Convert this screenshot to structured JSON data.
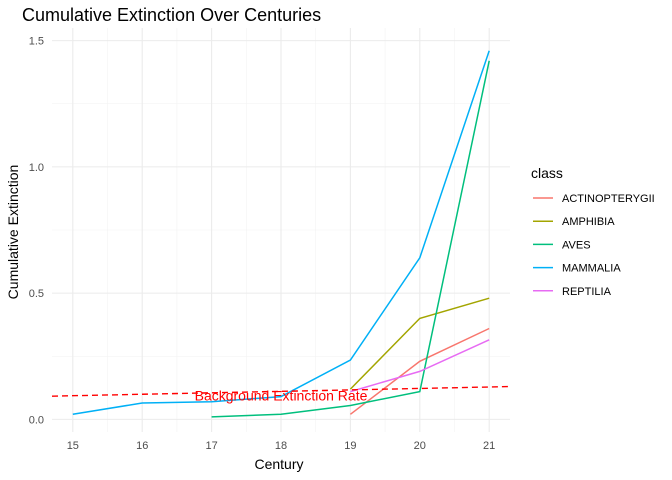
{
  "chart_data": {
    "type": "line",
    "title": "Cumulative Extinction Over Centuries",
    "xlabel": "Century",
    "ylabel": "Cumulative Extinction",
    "x_ticks": [
      15,
      16,
      17,
      18,
      19,
      20,
      21
    ],
    "y_ticks": [
      0.0,
      0.5,
      1.0,
      1.5
    ],
    "y_tick_labels": [
      "0.0",
      "0.5",
      "1.0",
      "1.5"
    ],
    "xlim": [
      14.7,
      21.3
    ],
    "ylim": [
      -0.05,
      1.55
    ],
    "grid": true,
    "legend": {
      "title": "class",
      "position": "right"
    },
    "series": [
      {
        "name": "ACTINOPTERYGII",
        "color": "#F8766D",
        "x": [
          19,
          20,
          21
        ],
        "y": [
          0.02,
          0.23,
          0.36
        ]
      },
      {
        "name": "AMPHIBIA",
        "color": "#A3A500",
        "x": [
          19,
          20,
          21
        ],
        "y": [
          0.12,
          0.4,
          0.48
        ]
      },
      {
        "name": "AVES",
        "color": "#00BF7D",
        "x": [
          17,
          18,
          19,
          20,
          21
        ],
        "y": [
          0.01,
          0.02,
          0.055,
          0.11,
          1.42
        ]
      },
      {
        "name": "MAMMALIA",
        "color": "#00B0F6",
        "x": [
          15,
          16,
          17,
          18,
          19,
          20,
          21
        ],
        "y": [
          0.02,
          0.065,
          0.07,
          0.09,
          0.235,
          0.64,
          1.46
        ]
      },
      {
        "name": "REPTILIA",
        "color": "#E76BF3",
        "x": [
          19,
          20,
          21
        ],
        "y": [
          0.11,
          0.19,
          0.315
        ]
      }
    ],
    "reference_line": {
      "label": "Background Extinction Rate",
      "color": "#FF0000",
      "style": "dashed",
      "x": [
        14.7,
        21.3
      ],
      "y": [
        0.092,
        0.13
      ],
      "label_x": 18,
      "label_y": 0.095
    }
  }
}
